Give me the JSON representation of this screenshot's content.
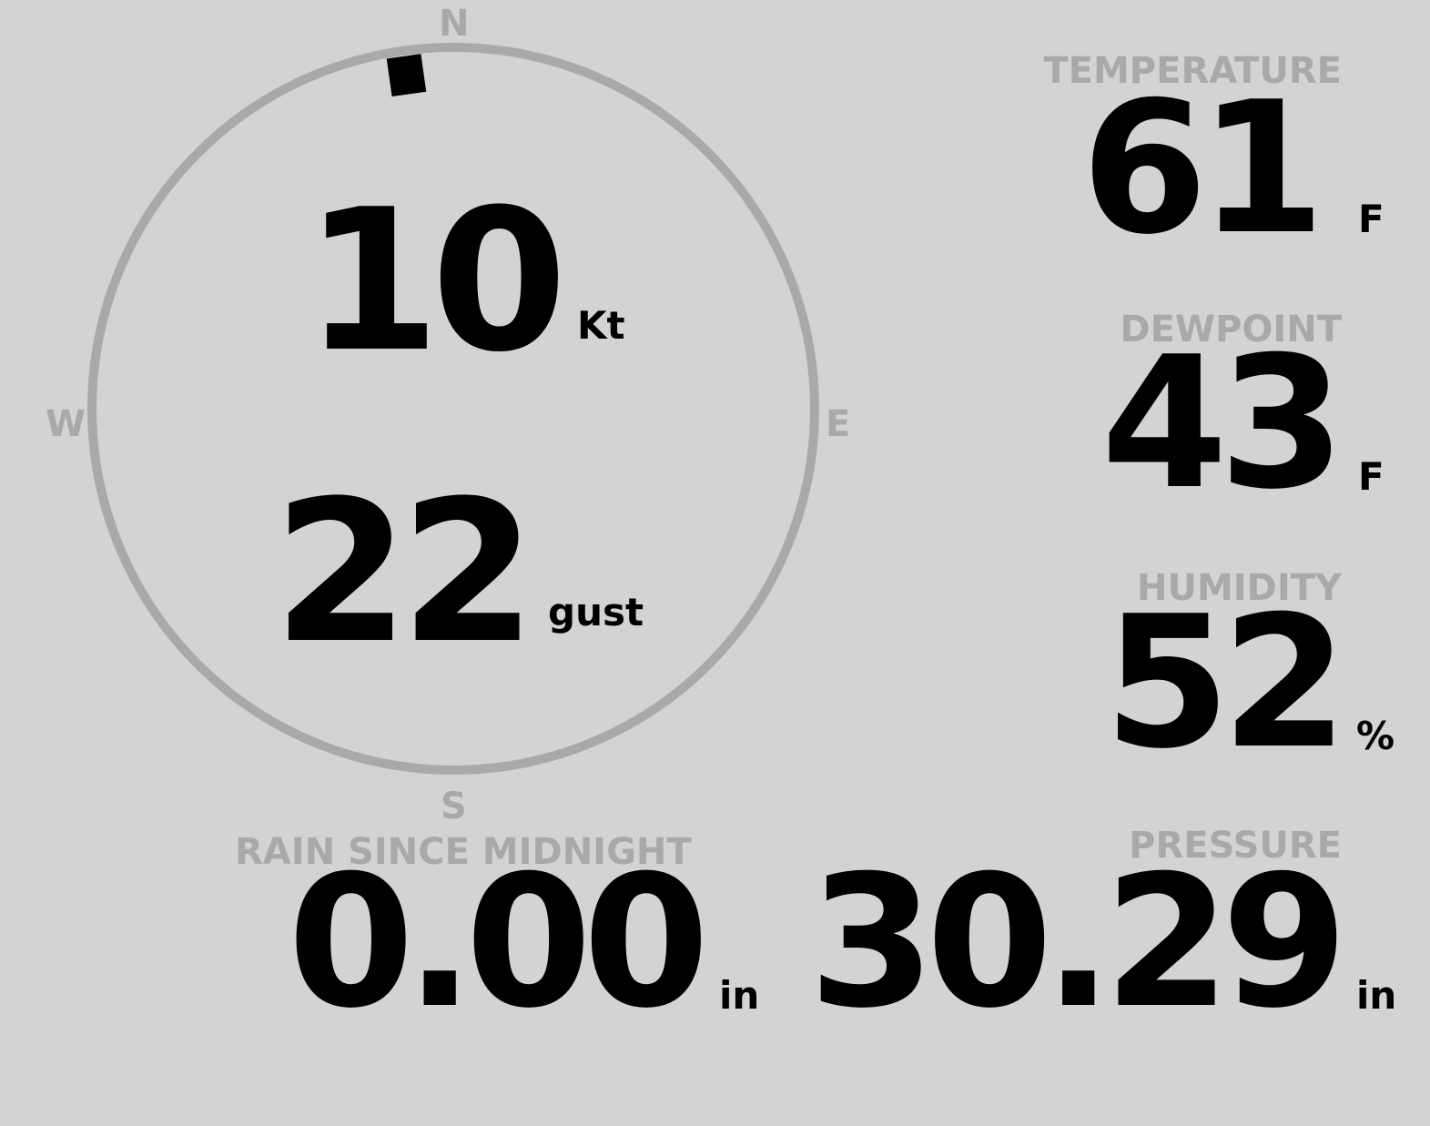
{
  "compass": {
    "north": "N",
    "east": "E",
    "south": "S",
    "west": "W",
    "wind_direction_deg": 352,
    "ring_color": "#a9a9a9",
    "marker_color": "#000000"
  },
  "wind": {
    "speed": "10",
    "speed_unit": "Kt",
    "gust": "22",
    "gust_unit": "gust"
  },
  "temperature": {
    "label": "TEMPERATURE",
    "value": "61",
    "unit": "F"
  },
  "dewpoint": {
    "label": "DEWPOINT",
    "value": "43",
    "unit": "F"
  },
  "humidity": {
    "label": "HUMIDITY",
    "value": "52",
    "unit": "%"
  },
  "rain": {
    "label": "RAIN SINCE MIDNIGHT",
    "value": "0.00",
    "unit": "in"
  },
  "pressure": {
    "label": "PRESSURE",
    "value": "30.29",
    "unit": "in"
  },
  "colors": {
    "background": "#d3d3d3",
    "label": "#a9a9a9",
    "value": "#000000"
  }
}
